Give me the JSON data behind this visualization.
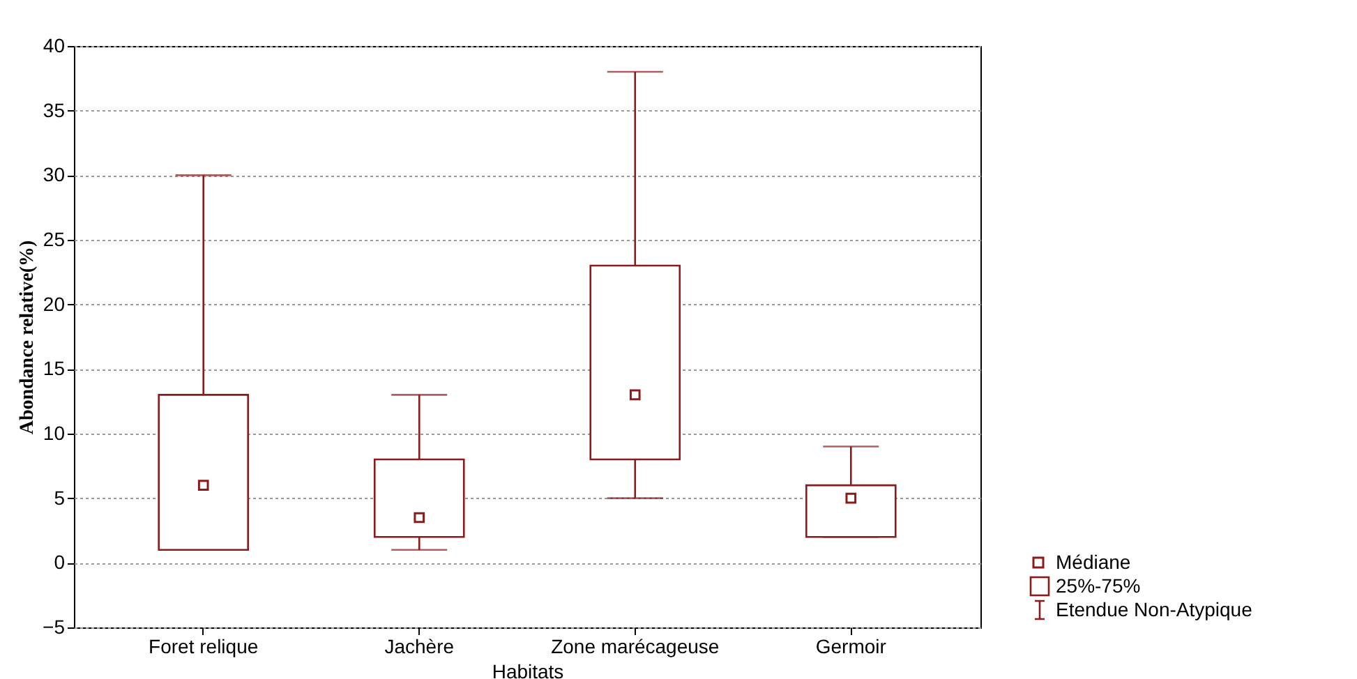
{
  "chart_data": {
    "type": "box",
    "xlabel": "Habitats",
    "ylabel": "Abondance relative(%)",
    "categories": [
      "Foret relique",
      "Jachère",
      "Zone marécageuse",
      "Germoir"
    ],
    "series": [
      {
        "color": "#8b1a1a",
        "boxes": [
          {
            "low": 1,
            "q1": 1,
            "median": 6,
            "q3": 13,
            "high": 30
          },
          {
            "low": 1,
            "q1": 2,
            "median": 3.5,
            "q3": 8,
            "high": 13
          },
          {
            "low": 5,
            "q1": 8,
            "median": 13,
            "q3": 23,
            "high": 38
          },
          {
            "low": 2,
            "q1": 2,
            "median": 5,
            "q3": 6,
            "high": 9
          }
        ]
      }
    ],
    "ylim": [
      -5,
      40
    ],
    "yticks": [
      -5,
      0,
      5,
      10,
      15,
      20,
      25,
      30,
      35,
      40
    ],
    "grid": "y",
    "annotations": [
      "Médiane",
      "25%-75%",
      "Etendue Non-Atypique"
    ]
  }
}
